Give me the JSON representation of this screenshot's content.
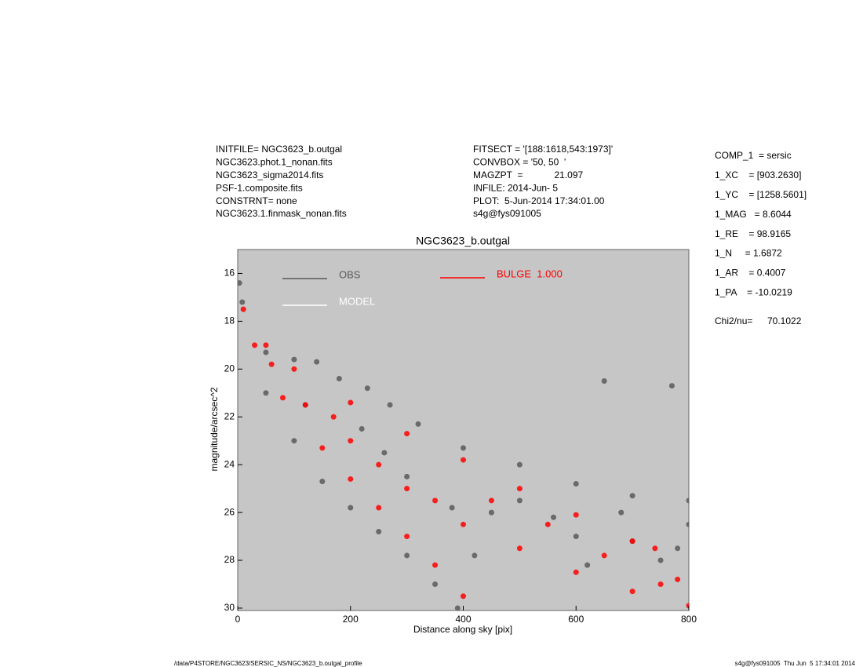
{
  "header": {
    "left": [
      "INITFILE= NGC3623_b.outgal",
      "NGC3623.phot.1_nonan.fits",
      "NGC3623_sigma2014.fits",
      "PSF-1.composite.fits",
      "CONSTRNT= none",
      "NGC3623.1.finmask_nonan.fits"
    ],
    "middle": [
      "FITSECT = '[188:1618,543:1973]'",
      "CONVBOX = '50, 50  '",
      "MAGZPT  =            21.097",
      "INFILE: 2014-Jun- 5",
      "PLOT:  5-Jun-2014 17:34:01.00",
      "s4g@fys091005"
    ]
  },
  "params": [
    "COMP_1  = sersic",
    "1_XC    = [903.2630]",
    "1_YC    = [1258.5601]",
    "1_MAG   = 8.6044",
    "1_RE    = 98.9165",
    "1_N     = 1.6872",
    "1_AR    = 0.4007",
    "1_PA    = -10.0219"
  ],
  "chi2": {
    "label": "Chi2/nu=",
    "value": "70.1022"
  },
  "footer": {
    "left": "/data/P4STORE/NGC3623/SERSIC_NS/NGC3623_b.outgal_profile",
    "right": "s4g@fys091005  Thu Jun  5 17:34:01 2014"
  },
  "chart_data": {
    "type": "scatter",
    "title": "NGC3623_b.outgal",
    "x_label": "Distance along sky [pix]",
    "y_label": "magnitude/arcsec^2",
    "xlim": [
      0,
      800
    ],
    "xticks": [
      0,
      200,
      400,
      600,
      800
    ],
    "ylim": [
      15,
      30.1
    ],
    "yticks": [
      16,
      18,
      20,
      22,
      24,
      26,
      28,
      30
    ],
    "y_inverted": true,
    "background": "#c6c6c6",
    "series": [
      {
        "name": "OBS",
        "color": "#595959",
        "x": [
          3,
          8,
          50,
          100,
          140,
          180,
          230,
          270,
          320,
          400,
          500,
          600,
          700,
          800,
          50,
          100,
          150,
          200,
          250,
          300,
          350,
          390,
          300,
          450,
          600,
          750,
          800,
          700,
          500,
          650,
          770,
          120,
          220,
          380,
          560,
          680,
          780,
          260,
          420,
          620
        ],
        "values": [
          16.4,
          17.2,
          19.3,
          19.6,
          19.7,
          20.4,
          20.8,
          21.5,
          22.3,
          23.3,
          24.0,
          24.8,
          25.3,
          25.5,
          21.0,
          23.0,
          24.7,
          25.8,
          26.8,
          27.8,
          29.0,
          30.0,
          24.5,
          26.0,
          27.0,
          28.0,
          26.5,
          27.2,
          25.5,
          20.5,
          20.7,
          21.5,
          22.5,
          25.8,
          26.2,
          26.0,
          27.5,
          23.5,
          27.8,
          28.2
        ]
      },
      {
        "name": "MODEL",
        "color": "#ffffff",
        "x": [],
        "values": []
      },
      {
        "name": "BULGE  1.000",
        "color": "#ff0000",
        "x": [
          10,
          50,
          100,
          200,
          300,
          400,
          500,
          600,
          700,
          740,
          780,
          30,
          80,
          150,
          200,
          250,
          300,
          350,
          400,
          200,
          300,
          400,
          500,
          600,
          700,
          800,
          450,
          550,
          650,
          120,
          250,
          350,
          750,
          60,
          170
        ],
        "values": [
          17.5,
          19.0,
          20.0,
          21.4,
          22.7,
          23.8,
          25.0,
          26.1,
          27.2,
          27.5,
          28.8,
          19.0,
          21.2,
          23.3,
          24.6,
          25.8,
          27.0,
          28.2,
          29.5,
          23.0,
          25.0,
          26.5,
          27.5,
          28.5,
          29.3,
          29.9,
          25.5,
          26.5,
          27.8,
          21.5,
          24.0,
          25.5,
          29.0,
          19.8,
          22.0
        ]
      }
    ]
  }
}
